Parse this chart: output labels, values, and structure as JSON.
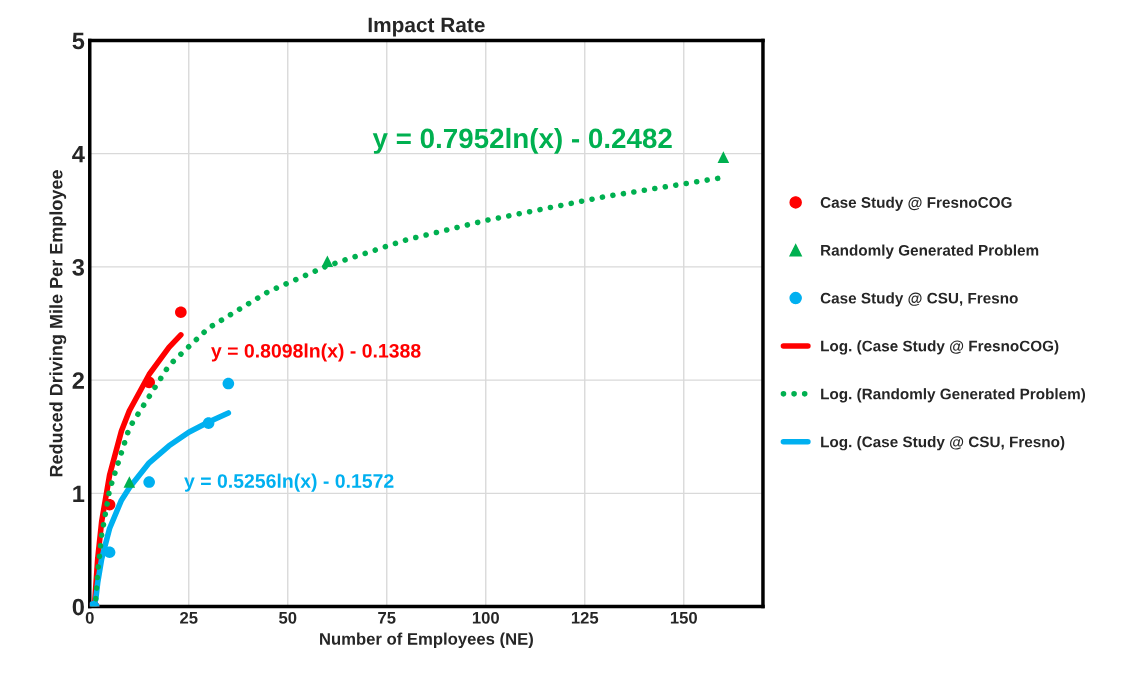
{
  "chart_data": {
    "type": "scatter",
    "title": "Impact Rate",
    "xlabel": "Number of Employees (NE)",
    "ylabel": "Reduced Driving Mile Per Employee",
    "xlim": [
      0,
      170
    ],
    "xticks": [
      0,
      25,
      50,
      75,
      100,
      125,
      150
    ],
    "ylim": [
      0,
      5
    ],
    "yticks": [
      0,
      1,
      2,
      3,
      4,
      5
    ],
    "grid": true,
    "legend": "right",
    "series": [
      {
        "name": "Case Study @ FresnoCOG",
        "marker": "circle",
        "color": "#ff0000",
        "x": [
          1,
          5,
          15,
          23
        ],
        "values": [
          0,
          0.9,
          1.98,
          2.6
        ]
      },
      {
        "name": "Randomly Generated Problem",
        "marker": "triangle",
        "color": "#00b050",
        "x": [
          1,
          10,
          60,
          160
        ],
        "values": [
          0,
          1.1,
          3.05,
          3.97
        ]
      },
      {
        "name": "Case Study @ CSU, Fresno",
        "marker": "circle",
        "color": "#00b0f0",
        "x": [
          1,
          5,
          15,
          30,
          35
        ],
        "values": [
          0,
          0.48,
          1.1,
          1.62,
          1.97
        ]
      },
      {
        "name": "Log. (Case Study @ FresnoCOG)",
        "type": "line",
        "line_style": "solid",
        "color": "#ff0000",
        "x": [
          1.2,
          2,
          3,
          5,
          8,
          10,
          15,
          20,
          23
        ],
        "values": [
          0.01,
          0.42,
          0.75,
          1.16,
          1.55,
          1.73,
          2.05,
          2.29,
          2.4
        ]
      },
      {
        "name": "Log. (Randomly Generated Problem)",
        "type": "line",
        "line_style": "dotted",
        "color": "#00b050",
        "x": [
          1.5,
          2,
          3,
          5,
          10,
          20,
          30,
          45,
          60,
          80,
          100,
          130,
          160
        ],
        "values": [
          0.07,
          0.3,
          0.63,
          1.03,
          1.58,
          2.13,
          2.46,
          2.78,
          3.01,
          3.24,
          3.41,
          3.62,
          3.79
        ]
      },
      {
        "name": "Log. (Case Study @ CSU, Fresno)",
        "type": "line",
        "line_style": "solid",
        "color": "#00b0f0",
        "x": [
          1.5,
          2,
          3,
          5,
          8,
          10,
          15,
          20,
          25,
          30,
          35
        ],
        "values": [
          0.06,
          0.21,
          0.42,
          0.69,
          0.94,
          1.05,
          1.27,
          1.42,
          1.54,
          1.63,
          1.71
        ]
      }
    ],
    "annotations": [
      "y = 0.8098ln(x) - 0.1388",
      "y = 0.7952ln(x) - 0.2482",
      "y = 0.5256ln(x) - 0.1572"
    ]
  }
}
